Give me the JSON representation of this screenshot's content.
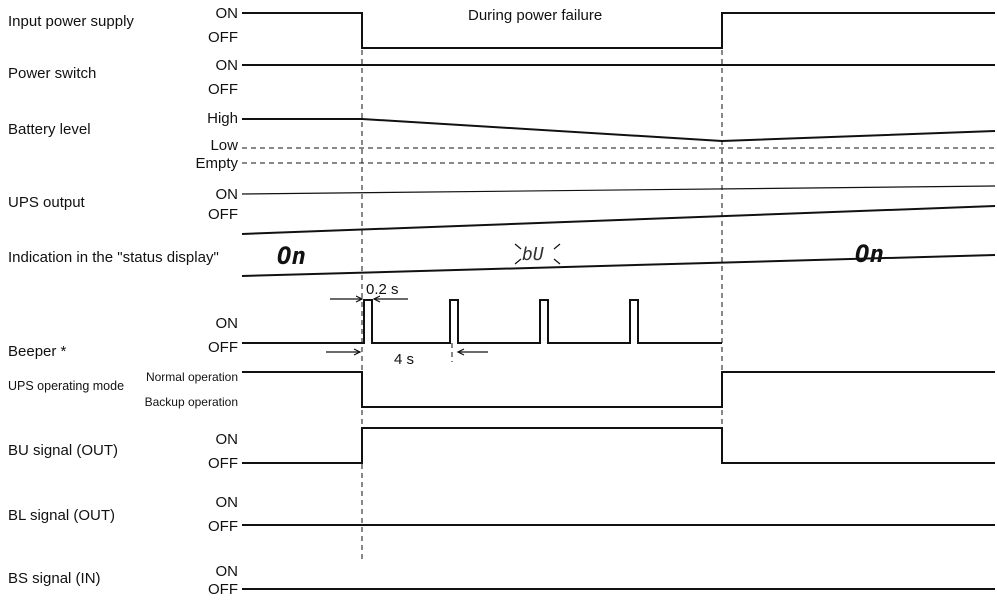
{
  "rows": {
    "input_power": {
      "label": "Input power supply",
      "high": "ON",
      "low": "OFF"
    },
    "power_switch": {
      "label": "Power switch",
      "high": "ON",
      "low": "OFF"
    },
    "battery": {
      "label": "Battery level",
      "high": "High",
      "mid": "Low",
      "low": "Empty"
    },
    "ups_output": {
      "label": "UPS output",
      "high": "ON",
      "low": "OFF"
    },
    "status_display": {
      "label": "Indication in the \"status display\"",
      "normal": "On",
      "failure": "bU",
      "restored": "On"
    },
    "beeper": {
      "label": "Beeper *",
      "high": "ON",
      "low": "OFF",
      "pulse_width": "0.2 s",
      "interval": "4 s"
    },
    "ups_mode": {
      "label": "UPS operating mode",
      "high": "Normal operation",
      "low": "Backup operation"
    },
    "bu_signal": {
      "label": "BU signal (OUT)",
      "high": "ON",
      "low": "OFF"
    },
    "bl_signal": {
      "label": "BL signal (OUT)",
      "high": "ON",
      "low": "OFF"
    },
    "bs_signal": {
      "label": "BS signal (IN)",
      "high": "ON",
      "low": "OFF"
    }
  },
  "annotations": {
    "failure_period": "During power failure"
  }
}
